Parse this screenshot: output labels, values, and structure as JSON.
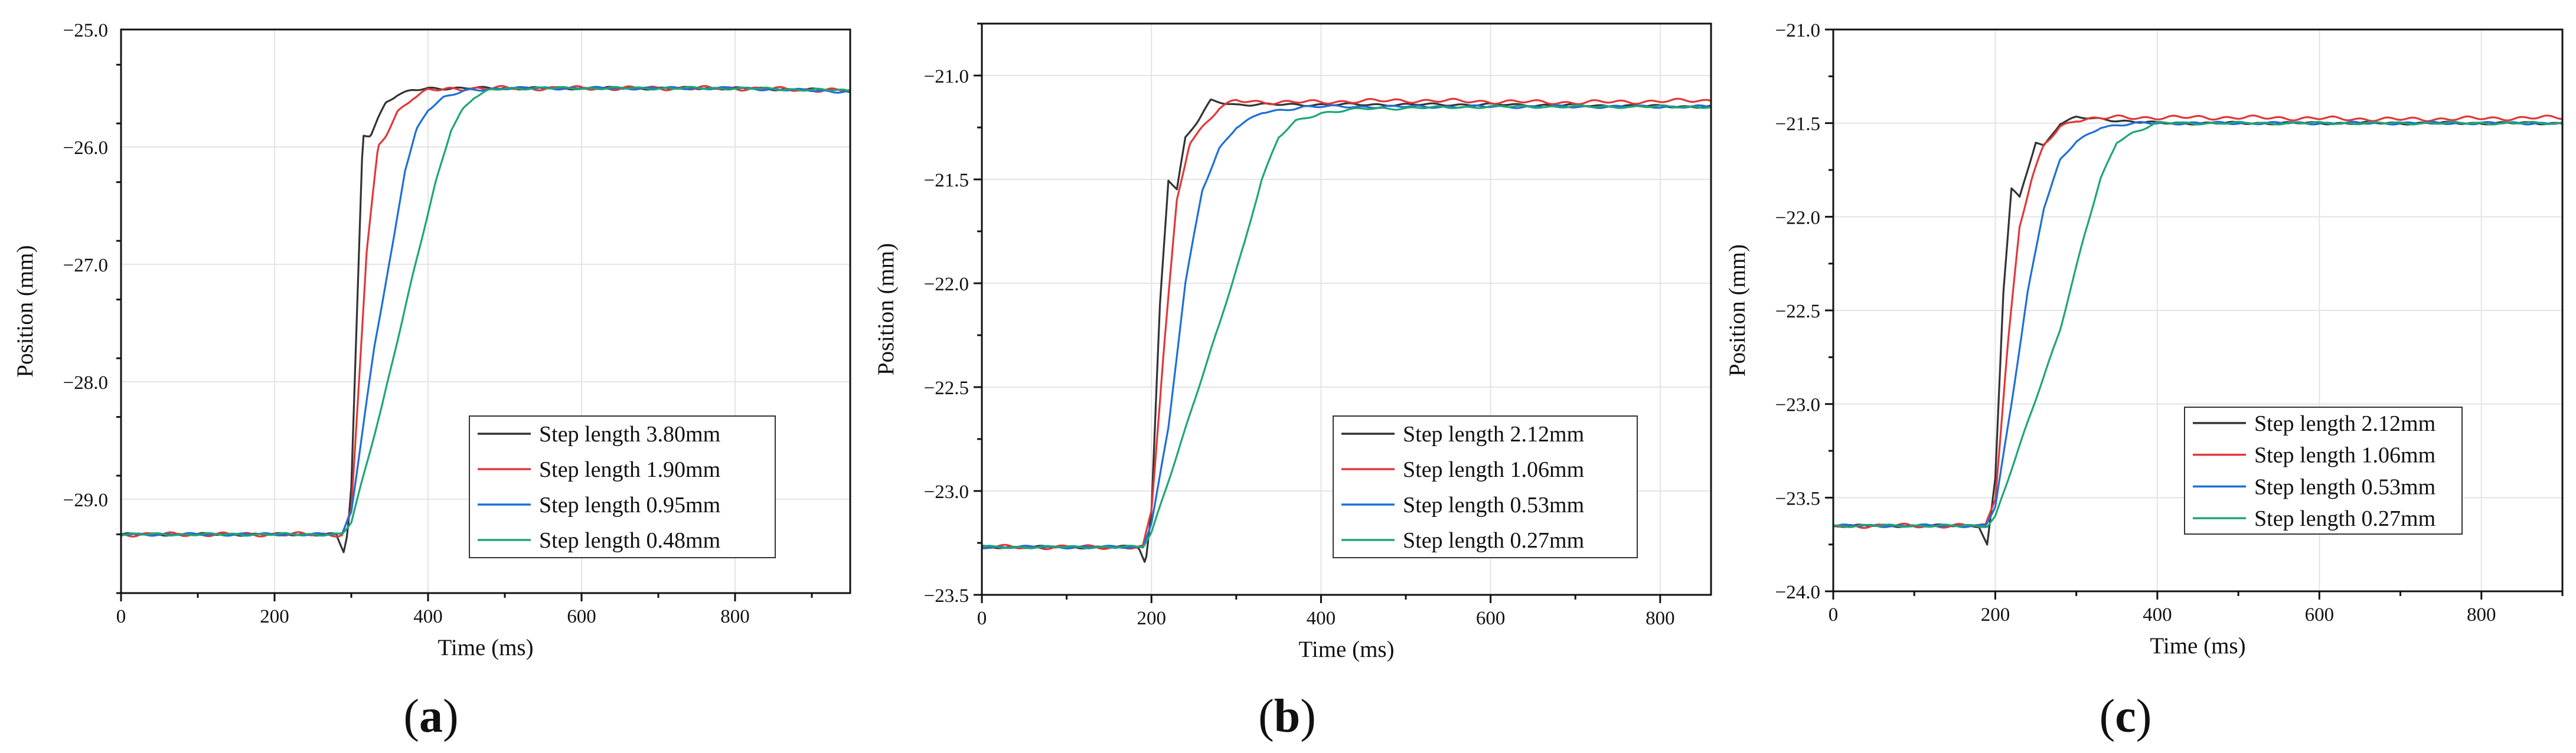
{
  "chart_data": [
    {
      "type": "line",
      "panel_label": "a",
      "xlabel": "Time (ms)",
      "ylabel": "Position (mm)",
      "xlim": [
        0,
        950
      ],
      "ylim": [
        -29.8,
        -25.0
      ],
      "xticks": [
        0,
        200,
        400,
        600,
        800
      ],
      "yticks": [
        -29.0,
        -28.0,
        -27.0,
        -26.0,
        -25.0
      ],
      "grid": true,
      "legend_position": "bottom-right",
      "step_start_ms": 290,
      "initial_value": -29.3,
      "final_value": -25.5,
      "series": [
        {
          "name": "Step length 3.80mm",
          "color": "#333333",
          "x": [
            0,
            280,
            290,
            295,
            300,
            315,
            325,
            335,
            345,
            360,
            380,
            400,
            450,
            600,
            800,
            950
          ],
          "y": [
            -29.3,
            -29.3,
            -29.45,
            -29.3,
            -28.9,
            -25.9,
            -25.9,
            -25.75,
            -25.62,
            -25.56,
            -25.52,
            -25.5,
            -25.5,
            -25.5,
            -25.5,
            -25.52
          ]
        },
        {
          "name": "Step length 1.90mm",
          "color": "#e0383a",
          "x": [
            0,
            288,
            300,
            320,
            335,
            345,
            360,
            380,
            400,
            450,
            600,
            800,
            950
          ],
          "y": [
            -29.3,
            -29.3,
            -29.1,
            -26.9,
            -26.0,
            -25.9,
            -25.7,
            -25.58,
            -25.52,
            -25.5,
            -25.5,
            -25.5,
            -25.52
          ]
        },
        {
          "name": "Step length 0.95mm",
          "color": "#1f6fd6",
          "x": [
            0,
            288,
            300,
            330,
            355,
            370,
            385,
            400,
            420,
            450,
            500,
            600,
            800,
            950
          ],
          "y": [
            -29.3,
            -29.3,
            -29.1,
            -27.7,
            -26.8,
            -26.2,
            -25.85,
            -25.68,
            -25.58,
            -25.52,
            -25.5,
            -25.5,
            -25.5,
            -25.53
          ]
        },
        {
          "name": "Step length 0.48mm",
          "color": "#1ea676",
          "x": [
            0,
            288,
            300,
            340,
            380,
            410,
            430,
            445,
            460,
            480,
            500,
            600,
            800,
            950
          ],
          "y": [
            -29.3,
            -29.3,
            -29.2,
            -28.2,
            -27.1,
            -26.3,
            -25.85,
            -25.68,
            -25.58,
            -25.52,
            -25.5,
            -25.5,
            -25.5,
            -25.52
          ]
        }
      ]
    },
    {
      "type": "line",
      "panel_label": "b",
      "xlabel": "Time (ms)",
      "ylabel": "Position (mm)",
      "xlim": [
        0,
        860
      ],
      "ylim": [
        -23.5,
        -20.75
      ],
      "xticks": [
        0,
        200,
        400,
        600,
        800
      ],
      "yticks": [
        -23.5,
        -23.0,
        -22.5,
        -22.0,
        -21.5,
        -21.0
      ],
      "grid": true,
      "legend_position": "bottom-right",
      "series": [
        {
          "name": "Step length 2.12mm",
          "color": "#333333",
          "x": [
            0,
            185,
            193,
            200,
            210,
            220,
            230,
            240,
            255,
            270,
            285,
            300,
            400,
            600,
            860
          ],
          "y": [
            -23.27,
            -23.27,
            -23.35,
            -23.1,
            -22.1,
            -21.5,
            -21.55,
            -21.3,
            -21.22,
            -21.12,
            -21.13,
            -21.14,
            -21.14,
            -21.14,
            -21.15
          ]
        },
        {
          "name": "Step length 1.06mm",
          "color": "#e0383a",
          "x": [
            0,
            190,
            200,
            215,
            230,
            245,
            260,
            280,
            300,
            350,
            500,
            700,
            860
          ],
          "y": [
            -23.27,
            -23.27,
            -23.1,
            -22.3,
            -21.6,
            -21.32,
            -21.25,
            -21.16,
            -21.12,
            -21.13,
            -21.12,
            -21.13,
            -21.12
          ]
        },
        {
          "name": "Step length 0.53mm",
          "color": "#1f6fd6",
          "x": [
            0,
            190,
            200,
            220,
            240,
            260,
            280,
            300,
            330,
            380,
            500,
            700,
            860
          ],
          "y": [
            -23.27,
            -23.27,
            -23.15,
            -22.7,
            -22.0,
            -21.55,
            -21.35,
            -21.25,
            -21.18,
            -21.15,
            -21.15,
            -21.15,
            -21.15
          ]
        },
        {
          "name": "Step length 0.27mm",
          "color": "#1ea676",
          "x": [
            0,
            190,
            200,
            240,
            280,
            310,
            330,
            350,
            370,
            400,
            450,
            600,
            860
          ],
          "y": [
            -23.27,
            -23.27,
            -23.2,
            -22.7,
            -22.2,
            -21.8,
            -21.5,
            -21.3,
            -21.22,
            -21.18,
            -21.16,
            -21.15,
            -21.15
          ]
        }
      ]
    },
    {
      "type": "line",
      "panel_label": "c",
      "xlabel": "Time (ms)",
      "ylabel": "Position (mm)",
      "xlim": [
        0,
        900
      ],
      "ylim": [
        -24.0,
        -21.0
      ],
      "xticks": [
        0,
        200,
        400,
        600,
        800
      ],
      "yticks": [
        -24.0,
        -23.5,
        -23.0,
        -22.5,
        -22.0,
        -21.5,
        -21.0
      ],
      "grid": true,
      "legend_position": "bottom-right",
      "series": [
        {
          "name": "Step length 2.12mm",
          "color": "#333333",
          "x": [
            0,
            180,
            190,
            200,
            210,
            220,
            230,
            240,
            250,
            260,
            280,
            300,
            400,
            600,
            900
          ],
          "y": [
            -23.65,
            -23.65,
            -23.75,
            -23.4,
            -22.4,
            -21.85,
            -21.9,
            -21.75,
            -21.6,
            -21.62,
            -21.5,
            -21.47,
            -21.5,
            -21.5,
            -21.5
          ]
        },
        {
          "name": "Step length 1.06mm",
          "color": "#e0383a",
          "x": [
            0,
            188,
            200,
            215,
            230,
            245,
            260,
            280,
            300,
            350,
            500,
            700,
            900
          ],
          "y": [
            -23.65,
            -23.65,
            -23.5,
            -22.7,
            -22.05,
            -21.8,
            -21.62,
            -21.52,
            -21.48,
            -21.47,
            -21.47,
            -21.48,
            -21.47
          ]
        },
        {
          "name": "Step length 0.53mm",
          "color": "#1f6fd6",
          "x": [
            0,
            188,
            200,
            220,
            240,
            260,
            280,
            300,
            330,
            380,
            500,
            700,
            900
          ],
          "y": [
            -23.65,
            -23.65,
            -23.55,
            -23.0,
            -22.4,
            -21.95,
            -21.7,
            -21.6,
            -21.52,
            -21.5,
            -21.5,
            -21.5,
            -21.5
          ]
        },
        {
          "name": "Step length 0.27mm",
          "color": "#1ea676",
          "x": [
            0,
            190,
            200,
            240,
            280,
            310,
            330,
            350,
            370,
            400,
            450,
            600,
            900
          ],
          "y": [
            -23.65,
            -23.65,
            -23.6,
            -23.1,
            -22.6,
            -22.1,
            -21.8,
            -21.6,
            -21.55,
            -21.5,
            -21.5,
            -21.5,
            -21.5
          ]
        }
      ]
    }
  ]
}
